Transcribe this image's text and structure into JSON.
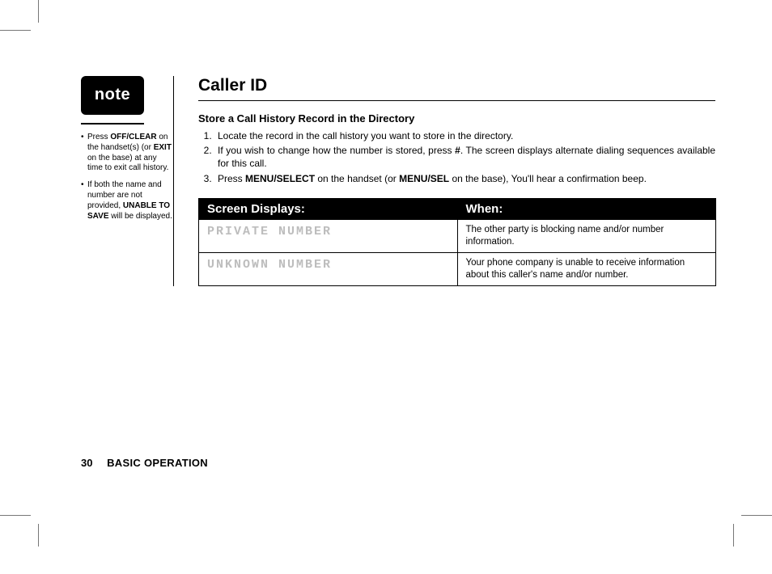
{
  "note": {
    "badge": "note",
    "items": [
      {
        "parts": [
          {
            "t": "Press ",
            "b": false
          },
          {
            "t": "OFF/CLEAR",
            "b": true
          },
          {
            "t": " on the handset(s) (or ",
            "b": false
          },
          {
            "t": "EXIT",
            "b": true
          },
          {
            "t": " on the base) at any time to exit call history.",
            "b": false
          }
        ]
      },
      {
        "parts": [
          {
            "t": "If both the name and number are not provided, ",
            "b": false
          },
          {
            "t": "UNABLE TO SAVE",
            "b": true
          },
          {
            "t": " will be displayed.",
            "b": false
          }
        ]
      }
    ]
  },
  "main": {
    "title": "Caller ID",
    "subhead": "Store a Call History Record in the Directory",
    "steps": [
      {
        "parts": [
          {
            "t": "Locate the record in the call history you want to store in the directory.",
            "b": false
          }
        ]
      },
      {
        "parts": [
          {
            "t": "If you wish to change how the number is stored, press ",
            "b": false
          },
          {
            "t": "#",
            "b": true
          },
          {
            "t": ". The screen displays alternate dialing sequences available for this call.",
            "b": false
          }
        ]
      },
      {
        "parts": [
          {
            "t": "Press ",
            "b": false
          },
          {
            "t": "MENU/SELECT",
            "b": true
          },
          {
            "t": " on the handset (or ",
            "b": false
          },
          {
            "t": "MENU/SEL",
            "b": true
          },
          {
            "t": " on the base), You'll hear a confirmation beep.",
            "b": false
          }
        ]
      }
    ]
  },
  "table": {
    "headers": [
      "Screen Displays:",
      "When:"
    ],
    "rows": [
      {
        "display": "PRIVATE NUMBER",
        "when": "The other party is blocking name and/or number information."
      },
      {
        "display": "UNKNOWN NUMBER",
        "when": "Your phone company is unable to receive information about this caller's name and/or number."
      }
    ]
  },
  "footer": {
    "page": "30",
    "section": "BASIC OPERATION"
  },
  "colors": {
    "bg": "#ffffff",
    "ink": "#000000",
    "lcd": "#bdbdbd"
  }
}
